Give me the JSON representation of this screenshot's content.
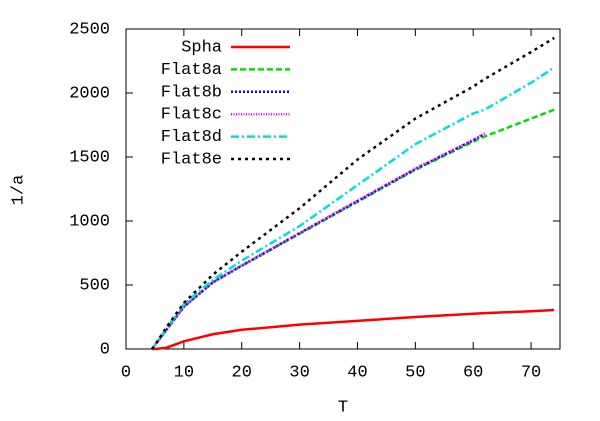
{
  "chart_data": {
    "type": "line",
    "x_label": "T",
    "y_label": "1/a",
    "x": [
      4.5,
      5,
      7,
      10,
      15,
      20,
      30,
      40,
      50,
      60,
      62,
      70,
      74
    ],
    "series": [
      {
        "name": "Spha",
        "color": "#ff0000",
        "dash": "none",
        "values": [
          0,
          0,
          10,
          60,
          115,
          150,
          190,
          220,
          250,
          275,
          280,
          295,
          305
        ]
      },
      {
        "name": "Flat8a",
        "color": "#00e000",
        "dash": "6,3",
        "values": [
          0,
          30,
          150,
          330,
          520,
          650,
          900,
          1150,
          1400,
          1620,
          1660,
          1800,
          1870
        ]
      },
      {
        "name": "Flat8b",
        "color": "#0000ff",
        "dash": "2,2",
        "values": [
          0,
          30,
          150,
          330,
          520,
          650,
          905,
          1155,
          1405,
          1630,
          1680,
          null,
          null
        ]
      },
      {
        "name": "Flat8c",
        "color": "#ff00ff",
        "dash": "1,1.5",
        "values": [
          0,
          30,
          150,
          330,
          525,
          655,
          905,
          1160,
          1410,
          1635,
          1685,
          null,
          null
        ]
      },
      {
        "name": "Flat8d",
        "color": "#00e0e0",
        "dash": "8,3,2,3",
        "values": [
          0,
          30,
          160,
          350,
          540,
          690,
          960,
          1280,
          1600,
          1840,
          1870,
          2080,
          2200
        ]
      },
      {
        "name": "Flat8e",
        "color": "#000000",
        "dash": "3,4",
        "values": [
          0,
          30,
          170,
          360,
          580,
          760,
          1100,
          1480,
          1800,
          2050,
          2110,
          2320,
          2430
        ]
      }
    ],
    "xlim": [
      0,
      75
    ],
    "xticks": [
      0,
      10,
      20,
      30,
      40,
      50,
      60,
      70
    ],
    "ylim": [
      0,
      2500
    ],
    "yticks": [
      0,
      500,
      1000,
      1500,
      2000,
      2500
    ],
    "legend": "top-left"
  }
}
